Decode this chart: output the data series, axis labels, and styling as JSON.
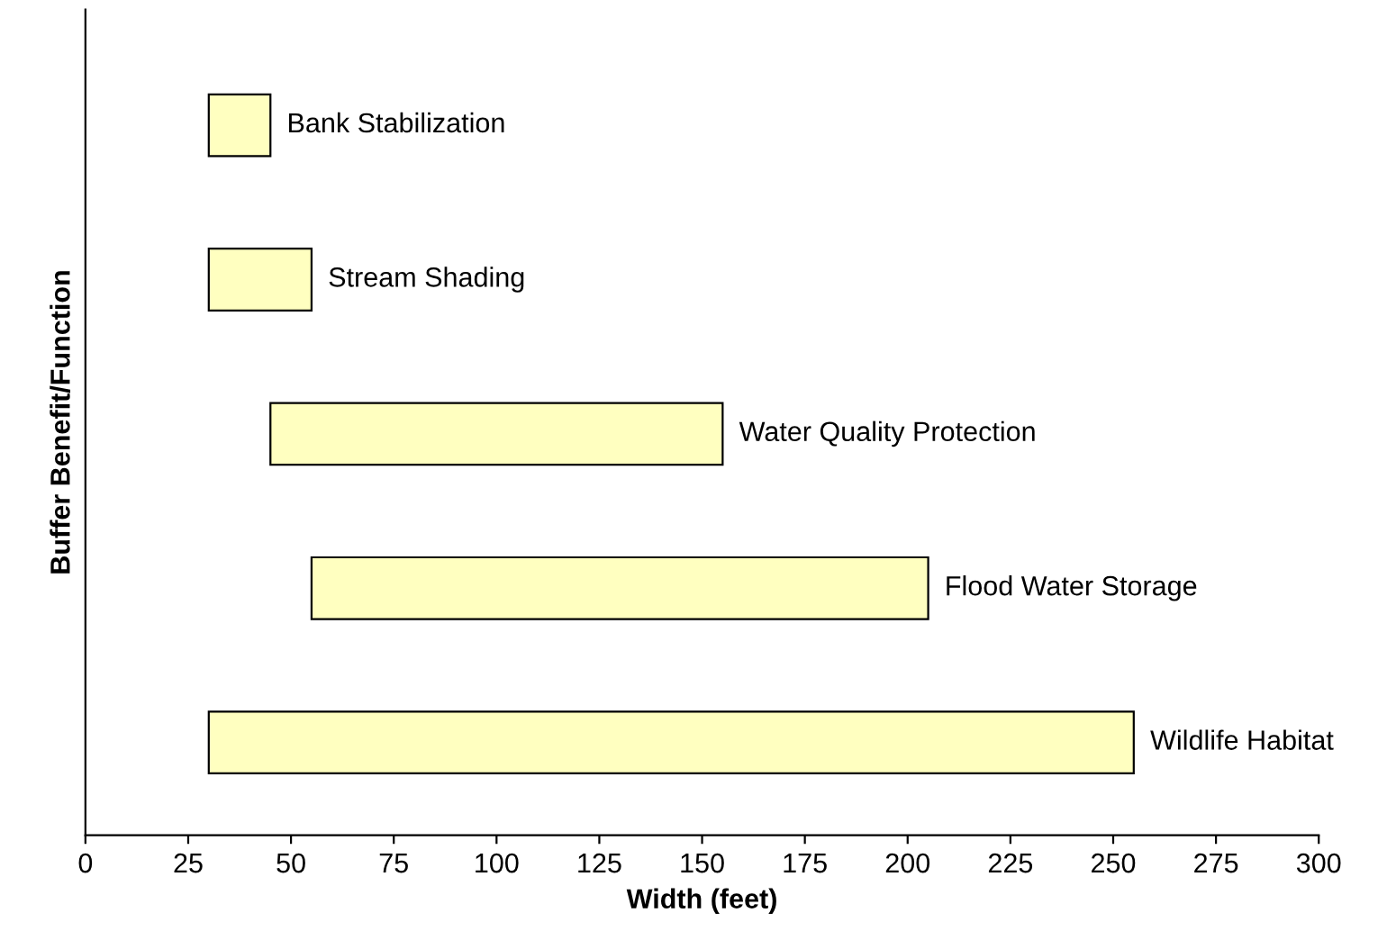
{
  "chart_data": {
    "type": "bar",
    "orientation": "horizontal",
    "xlabel": "Width (feet)",
    "ylabel": "Buffer Benefit/Function",
    "categories": [
      "Bank Stabilization",
      "Stream Shading",
      "Water Quality Protection",
      "Flood Water Storage",
      "Wildlife Habitat"
    ],
    "base": [
      30,
      30,
      45,
      55,
      30
    ],
    "values": [
      15,
      25,
      110,
      150,
      225
    ],
    "color": "#ffffc0",
    "xlim": [
      0,
      300
    ],
    "xticks": [
      0,
      25,
      50,
      75,
      100,
      125,
      150,
      175,
      200,
      225,
      250,
      275,
      300
    ],
    "grid": false,
    "legend": false
  }
}
